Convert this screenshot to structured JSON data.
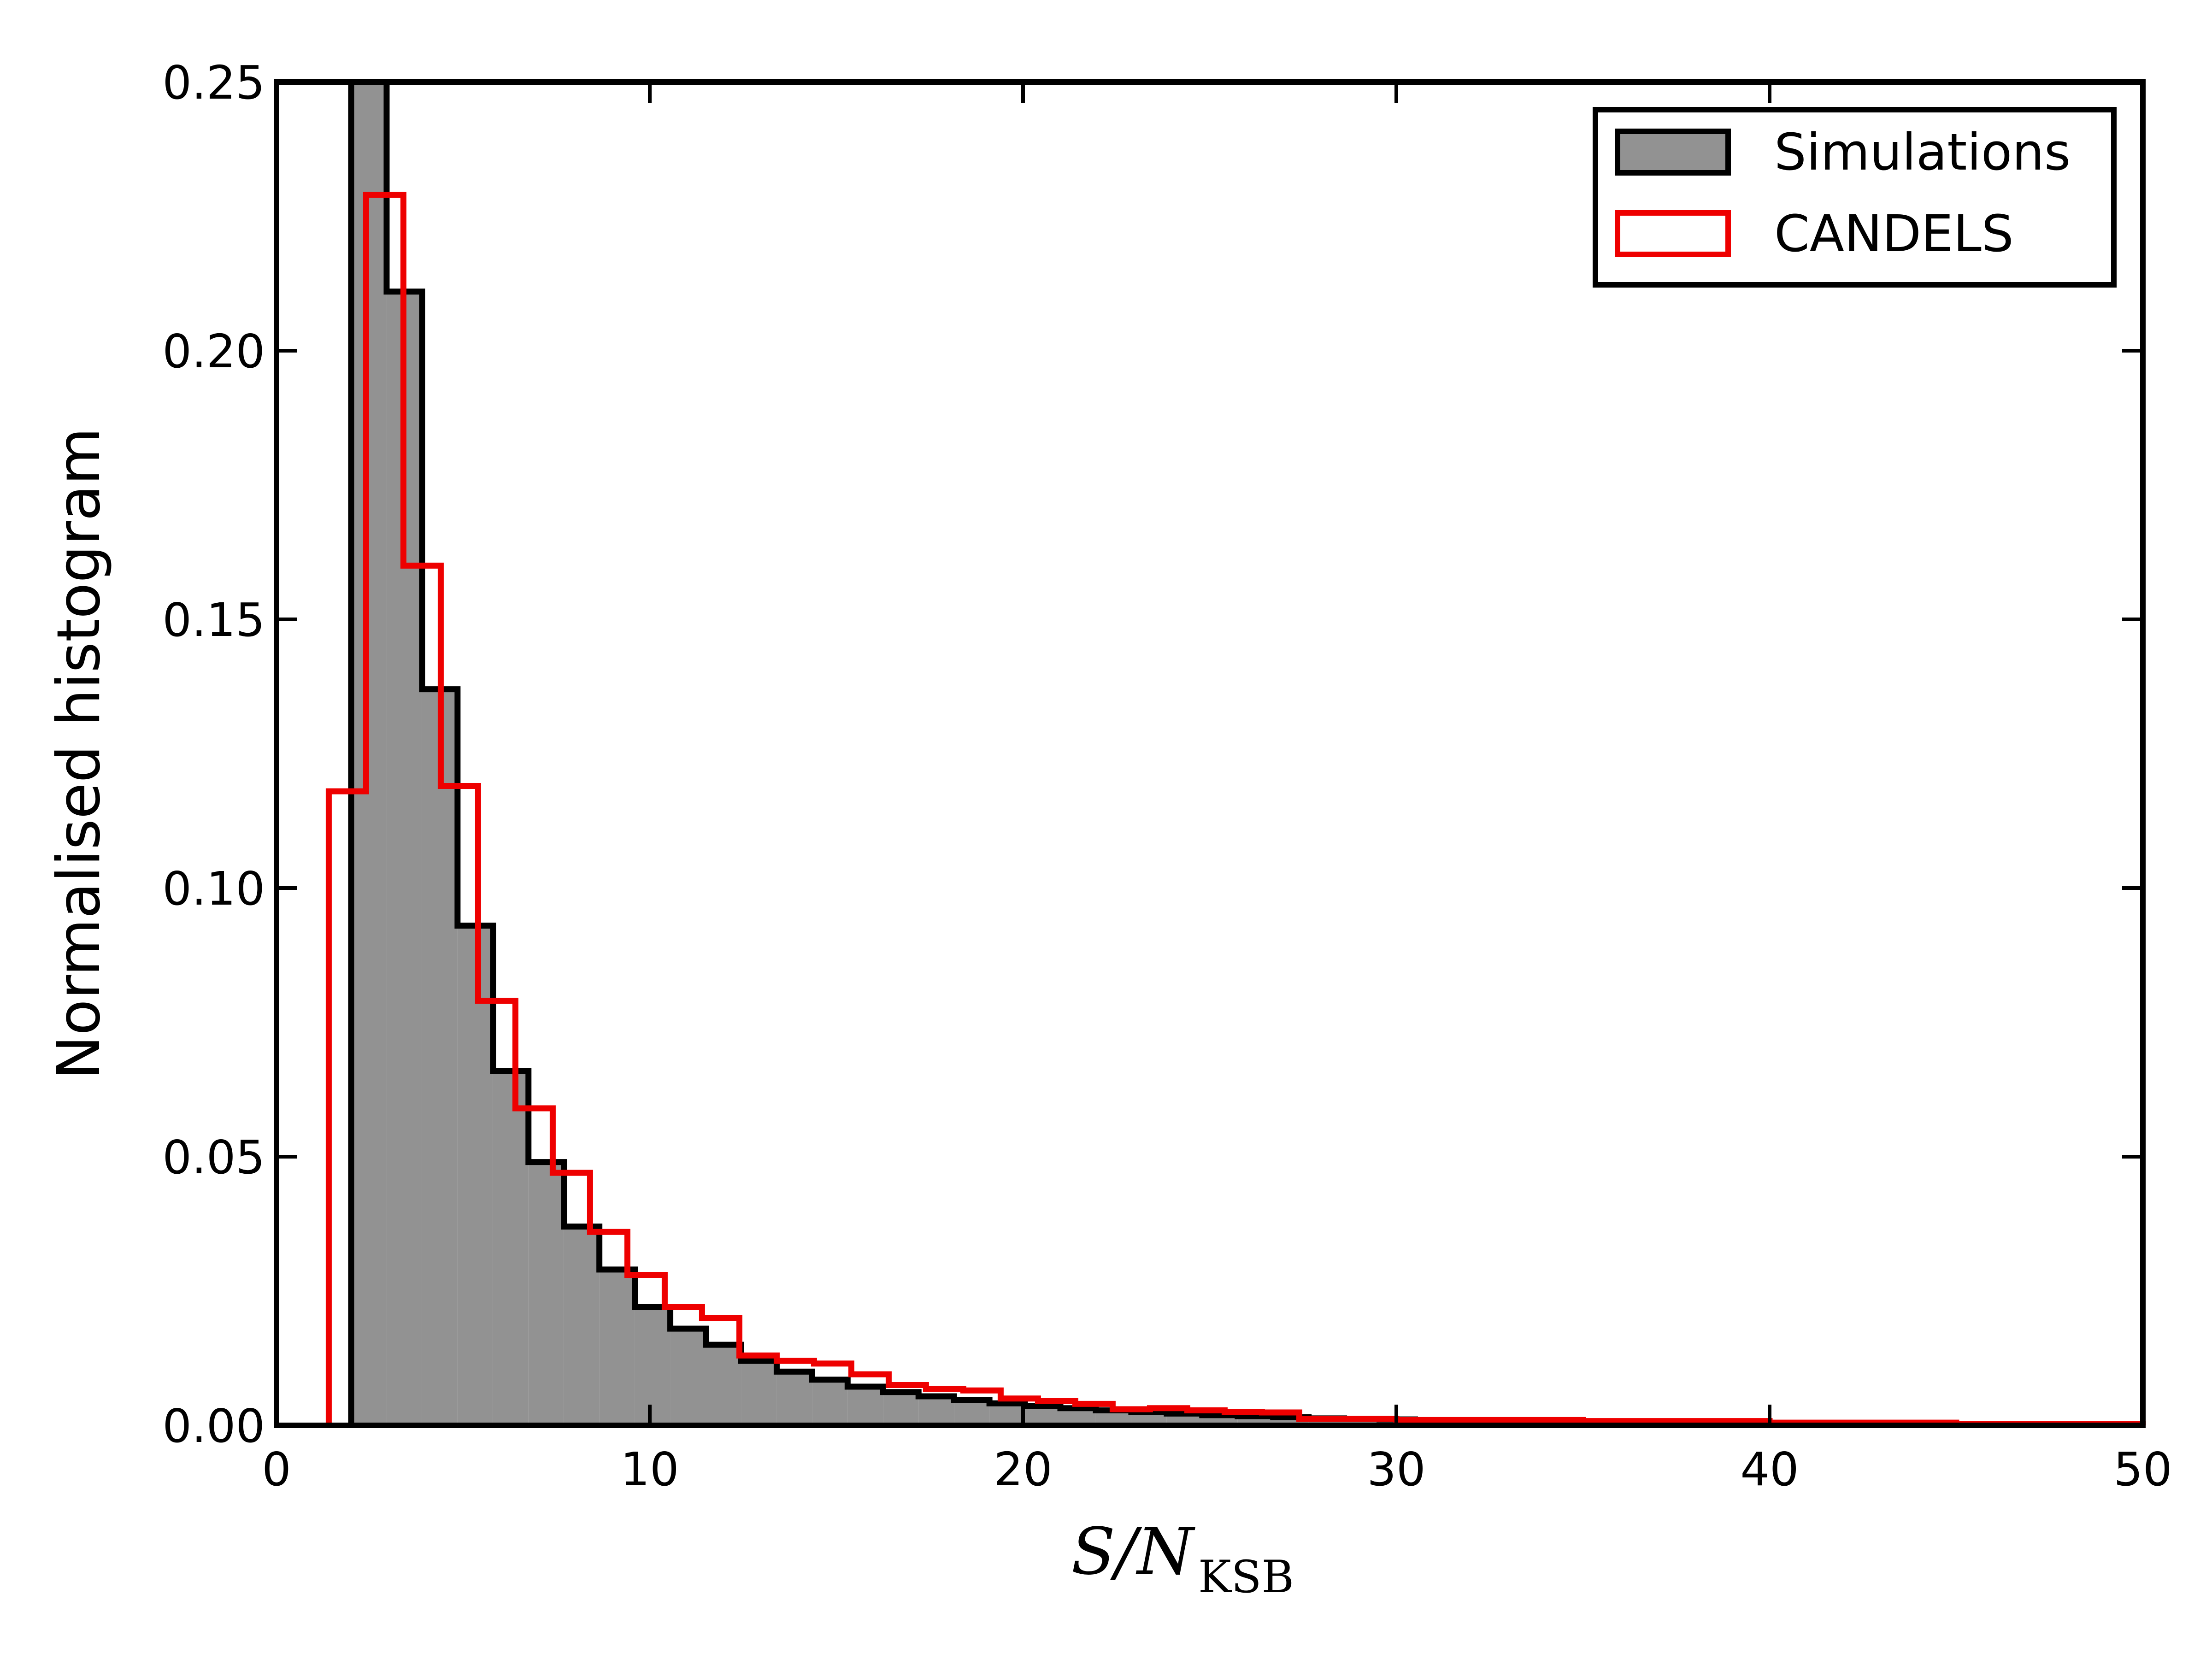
{
  "chart_data": {
    "type": "histogram",
    "xlabel": {
      "main": "S/N",
      "sub": "KSB"
    },
    "ylabel": "Normalised histogram",
    "xlim": [
      0,
      50
    ],
    "ylim": [
      0,
      0.25
    ],
    "xticks": [
      "0",
      "10",
      "20",
      "30",
      "40",
      "50"
    ],
    "yticks": [
      "0.00",
      "0.05",
      "0.10",
      "0.15",
      "0.20",
      "0.25"
    ],
    "grid": false,
    "legend": {
      "position": "top-right"
    },
    "series": [
      {
        "name": "Simulations",
        "style": "filled",
        "fill_color": "#929292",
        "edge_color": "#000000",
        "edges": [
          2.0,
          2.95,
          3.9,
          4.85,
          5.8,
          6.75,
          7.7,
          8.65,
          9.6,
          10.55,
          11.5,
          12.45,
          13.4,
          14.35,
          15.3,
          16.25,
          17.2,
          18.15,
          19.1,
          20.05,
          21.0,
          21.95,
          22.9,
          23.85,
          24.8,
          25.75,
          26.7,
          27.65,
          28.6,
          29.55,
          30.5,
          35.0,
          40.0,
          45.0,
          50.0
        ],
        "values": [
          0.262,
          0.211,
          0.137,
          0.093,
          0.066,
          0.049,
          0.037,
          0.029,
          0.022,
          0.018,
          0.015,
          0.012,
          0.01,
          0.0085,
          0.0072,
          0.0062,
          0.0054,
          0.0047,
          0.0041,
          0.0036,
          0.0032,
          0.0028,
          0.0025,
          0.0022,
          0.0019,
          0.0017,
          0.0015,
          0.0013,
          0.0012,
          0.0011,
          0.0008,
          0.0005,
          0.0003,
          0.0002
        ]
      },
      {
        "name": "CANDELS",
        "style": "step",
        "edge_color": "#ee0000",
        "edges": [
          1.4,
          2.4,
          3.4,
          4.4,
          5.4,
          6.4,
          7.4,
          8.4,
          9.4,
          10.4,
          11.4,
          12.4,
          13.4,
          14.4,
          15.4,
          16.4,
          17.4,
          18.4,
          19.4,
          20.4,
          21.4,
          22.4,
          23.4,
          24.4,
          25.4,
          26.4,
          27.4,
          30.0,
          35.0,
          40.0,
          45.0,
          50.0
        ],
        "values": [
          0.118,
          0.229,
          0.16,
          0.119,
          0.079,
          0.059,
          0.047,
          0.036,
          0.028,
          0.022,
          0.02,
          0.013,
          0.012,
          0.0115,
          0.0095,
          0.0075,
          0.0068,
          0.0065,
          0.005,
          0.0045,
          0.004,
          0.003,
          0.0032,
          0.0028,
          0.0025,
          0.0024,
          0.0012,
          0.001,
          0.0008,
          0.0005,
          0.0003
        ]
      }
    ]
  }
}
